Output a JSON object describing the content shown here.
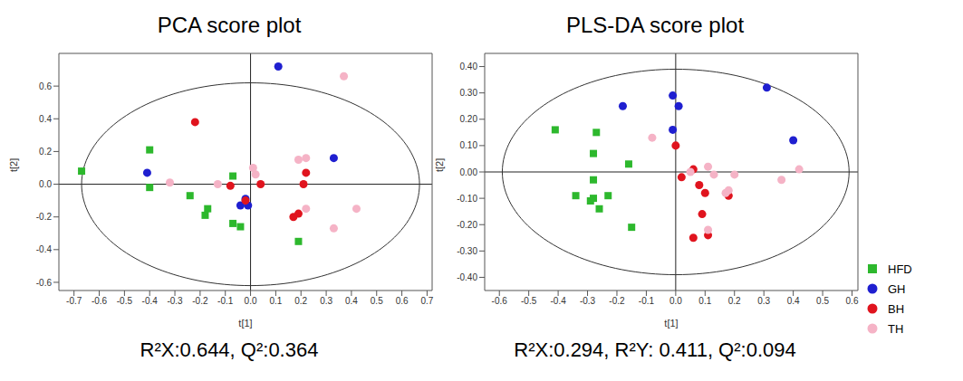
{
  "chart_data": [
    {
      "type": "scatter",
      "title": "PCA score plot",
      "subtitle": "R²X:0.644, Q²:0.364",
      "x_label": "t[1]",
      "y_label": "t[2]",
      "xlim": [
        -0.76,
        0.72
      ],
      "ylim": [
        -0.65,
        0.8
      ],
      "xticks": [
        -0.7,
        -0.6,
        -0.5,
        -0.4,
        -0.3,
        -0.2,
        -0.1,
        {
          "value": 0,
          "label": "0.0"
        },
        0.1,
        0.2,
        0.3,
        0.4,
        0.5,
        0.6,
        0.7
      ],
      "yticks": [
        -0.6,
        -0.4,
        -0.2,
        {
          "value": 0,
          "label": "0.0"
        },
        0.2,
        0.4,
        0.6
      ],
      "ellipse": {
        "center": [
          0,
          0
        ],
        "radii": [
          0.67,
          0.62
        ]
      },
      "series": [
        {
          "name": "HFD",
          "color": "#2db82d",
          "marker": "square",
          "x": [
            -0.67,
            -0.4,
            -0.4,
            -0.24,
            -0.17,
            -0.18,
            -0.07,
            -0.07,
            -0.04,
            0.19
          ],
          "y": [
            0.08,
            0.21,
            -0.02,
            -0.07,
            -0.15,
            -0.19,
            0.05,
            -0.24,
            -0.26,
            -0.35
          ]
        },
        {
          "name": "GH",
          "color": "#1f1fd0",
          "marker": "circle",
          "x": [
            -0.41,
            0.11,
            0.33,
            -0.02,
            -0.04,
            -0.01
          ],
          "y": [
            0.07,
            0.72,
            0.16,
            -0.09,
            -0.13,
            -0.13
          ]
        },
        {
          "name": "BH",
          "color": "#e0141e",
          "marker": "circle",
          "x": [
            -0.22,
            -0.08,
            -0.02,
            0.04,
            0.22,
            0.21,
            0.19,
            0.17
          ],
          "y": [
            0.38,
            -0.01,
            -0.1,
            0.0,
            0.07,
            0.0,
            -0.18,
            -0.2
          ]
        },
        {
          "name": "TH",
          "color": "#f5b3c6",
          "marker": "circle",
          "x": [
            0.37,
            -0.32,
            -0.13,
            0.01,
            0.02,
            0.19,
            0.22,
            0.22,
            0.33,
            0.42
          ],
          "y": [
            0.66,
            0.01,
            0.0,
            0.1,
            0.06,
            0.15,
            0.16,
            -0.15,
            -0.27,
            -0.15
          ]
        }
      ]
    },
    {
      "type": "scatter",
      "title": "PLS-DA score plot",
      "subtitle": "R²X:0.294, R²Y: 0.411, Q²:0.094",
      "x_label": "t[1]",
      "y_label": "t[2]",
      "xlim": [
        -0.65,
        0.62
      ],
      "ylim": [
        -0.45,
        0.45
      ],
      "legend": "right",
      "xticks": [
        -0.6,
        -0.5,
        -0.4,
        -0.3,
        -0.2,
        -0.1,
        {
          "value": 0,
          "label": "0.0"
        },
        0.1,
        0.2,
        0.3,
        0.4,
        0.5,
        0.6
      ],
      "yticks": [
        {
          "value": -0.4,
          "label": "-0.40"
        },
        {
          "value": -0.3,
          "label": "-0.30"
        },
        {
          "value": -0.2,
          "label": "-0.20"
        },
        {
          "value": -0.1,
          "label": "-0.10"
        },
        {
          "value": 0,
          "label": "0.00"
        },
        {
          "value": 0.1,
          "label": "0.10"
        },
        {
          "value": 0.2,
          "label": "0.20"
        },
        {
          "value": 0.3,
          "label": "0.30"
        },
        {
          "value": 0.4,
          "label": "0.40"
        }
      ],
      "ellipse": {
        "center": [
          0,
          0
        ],
        "radii": [
          0.59,
          0.39
        ]
      },
      "series": [
        {
          "name": "HFD",
          "color": "#2db82d",
          "marker": "square",
          "x": [
            -0.41,
            -0.27,
            -0.28,
            -0.28,
            -0.16,
            -0.34,
            -0.29,
            -0.28,
            -0.23,
            -0.26,
            -0.15
          ],
          "y": [
            0.16,
            0.15,
            0.07,
            -0.03,
            0.03,
            -0.09,
            -0.11,
            -0.1,
            -0.09,
            -0.14,
            -0.21
          ]
        },
        {
          "name": "GH",
          "color": "#1f1fd0",
          "marker": "circle",
          "x": [
            -0.18,
            -0.01,
            0.01,
            -0.01,
            0.31,
            0.4
          ],
          "y": [
            0.25,
            0.29,
            0.25,
            0.16,
            0.32,
            0.12
          ]
        },
        {
          "name": "BH",
          "color": "#e0141e",
          "marker": "circle",
          "x": [
            0.0,
            0.02,
            0.06,
            0.08,
            0.1,
            0.09,
            0.06,
            0.11,
            0.18
          ],
          "y": [
            0.1,
            -0.02,
            0.01,
            -0.05,
            -0.08,
            -0.16,
            -0.25,
            -0.24,
            -0.09
          ]
        },
        {
          "name": "TH",
          "color": "#f5b3c6",
          "marker": "circle",
          "x": [
            -0.08,
            0.05,
            0.11,
            0.13,
            0.17,
            0.2,
            0.36,
            0.42,
            0.11,
            0.18
          ],
          "y": [
            0.13,
            0.0,
            0.02,
            -0.01,
            -0.08,
            -0.01,
            -0.03,
            0.01,
            -0.22,
            -0.07
          ]
        }
      ]
    }
  ]
}
